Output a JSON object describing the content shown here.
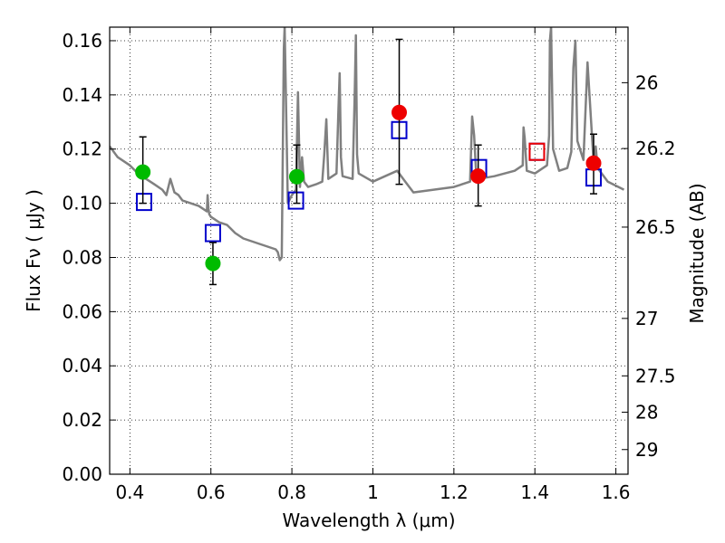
{
  "chart_data": {
    "type": "scatter",
    "xlabel": "Wavelength  λ (μm)",
    "ylabel": "Flux  Fν  ( μJy )",
    "y2label": "Magnitude (AB)",
    "xlim": [
      0.35,
      1.63
    ],
    "ylim": [
      0.0,
      0.165
    ],
    "grid": true,
    "x_ticks": [
      0.4,
      0.6,
      0.8,
      1.0,
      1.2,
      1.4,
      1.6
    ],
    "x_tick_labels": [
      "0.4",
      "0.6",
      "0.8",
      "1",
      "1.2",
      "1.4",
      "1.6"
    ],
    "y_ticks": [
      0.0,
      0.02,
      0.04,
      0.06,
      0.08,
      0.1,
      0.12,
      0.14,
      0.16
    ],
    "y_tick_labels": [
      "0.00",
      "0.02",
      "0.04",
      "0.06",
      "0.08",
      "0.10",
      "0.12",
      "0.14",
      "0.16"
    ],
    "y2_ticks": [
      {
        "label": "26",
        "flux": 0.1445
      },
      {
        "label": "26.2",
        "flux": 0.1202
      },
      {
        "label": "26.5",
        "flux": 0.0912
      },
      {
        "label": "27",
        "flux": 0.0575
      },
      {
        "label": "27.5",
        "flux": 0.0363
      },
      {
        "label": "28",
        "flux": 0.0229
      },
      {
        "label": "29",
        "flux": 0.0091
      }
    ],
    "series": [
      {
        "kind": "line",
        "color": "#808080",
        "x": [
          0.35,
          0.37,
          0.38,
          0.4,
          0.42,
          0.44,
          0.46,
          0.48,
          0.49,
          0.5,
          0.51,
          0.52,
          0.53,
          0.55,
          0.57,
          0.59,
          0.592,
          0.594,
          0.596,
          0.6,
          0.62,
          0.64,
          0.66,
          0.68,
          0.7,
          0.72,
          0.74,
          0.76,
          0.765,
          0.77,
          0.775,
          0.78,
          0.782,
          0.79,
          0.8,
          0.81,
          0.815,
          0.82,
          0.825,
          0.83,
          0.84,
          0.86,
          0.875,
          0.88,
          0.885,
          0.89,
          0.91,
          0.915,
          0.918,
          0.921,
          0.925,
          0.95,
          0.955,
          0.958,
          0.961,
          0.965,
          1.0,
          1.03,
          1.06,
          1.08,
          1.1,
          1.15,
          1.2,
          1.24,
          1.245,
          1.25,
          1.255,
          1.26,
          1.3,
          1.35,
          1.37,
          1.372,
          1.375,
          1.38,
          1.4,
          1.43,
          1.435,
          1.437,
          1.44,
          1.445,
          1.46,
          1.48,
          1.49,
          1.495,
          1.5,
          1.505,
          1.52,
          1.53,
          1.545,
          1.55,
          1.555,
          1.58,
          1.62
        ],
        "y": [
          0.121,
          0.117,
          0.116,
          0.114,
          0.111,
          0.109,
          0.107,
          0.105,
          0.103,
          0.109,
          0.104,
          0.103,
          0.101,
          0.1,
          0.099,
          0.097,
          0.103,
          0.098,
          0.096,
          0.095,
          0.093,
          0.092,
          0.089,
          0.087,
          0.086,
          0.085,
          0.084,
          0.083,
          0.082,
          0.079,
          0.08,
          0.157,
          0.165,
          0.1,
          0.103,
          0.105,
          0.141,
          0.106,
          0.117,
          0.108,
          0.106,
          0.107,
          0.108,
          0.118,
          0.131,
          0.109,
          0.111,
          0.135,
          0.148,
          0.117,
          0.11,
          0.109,
          0.14,
          0.162,
          0.118,
          0.111,
          0.108,
          0.11,
          0.112,
          0.108,
          0.104,
          0.105,
          0.106,
          0.108,
          0.132,
          0.125,
          0.111,
          0.109,
          0.11,
          0.112,
          0.114,
          0.128,
          0.124,
          0.112,
          0.111,
          0.114,
          0.125,
          0.16,
          0.165,
          0.12,
          0.112,
          0.113,
          0.119,
          0.15,
          0.16,
          0.123,
          0.116,
          0.152,
          0.115,
          0.121,
          0.113,
          0.108,
          0.105
        ]
      },
      {
        "name": "",
        "kind": "open-square",
        "color": "#0000cc",
        "x": [
          0.435,
          0.605,
          0.81,
          1.065,
          1.262,
          1.405,
          1.545
        ],
        "y": [
          0.1005,
          0.089,
          0.101,
          0.127,
          0.113,
          0.119,
          0.1095
        ]
      },
      {
        "name": "",
        "kind": "filled-circle",
        "color": "#00bb00",
        "x": [
          0.432,
          0.605,
          0.812
        ],
        "y": [
          0.1115,
          0.0778,
          0.1098
        ],
        "err_low": [
          0.1,
          0.07,
          0.1
        ],
        "err_high": [
          0.1245,
          0.0855,
          0.1215
        ]
      },
      {
        "name": "",
        "kind": "filled-circle",
        "color": "#ee0000",
        "x": [
          1.065,
          1.26,
          1.545
        ],
        "y": [
          0.1335,
          0.11,
          0.1148
        ],
        "err_low": [
          0.107,
          0.099,
          0.1035
        ],
        "err_high": [
          0.1605,
          0.1215,
          0.1255
        ]
      },
      {
        "name": "",
        "kind": "open-square",
        "color": "#ee0000",
        "x": [
          1.405
        ],
        "y": [
          0.119
        ]
      }
    ]
  }
}
